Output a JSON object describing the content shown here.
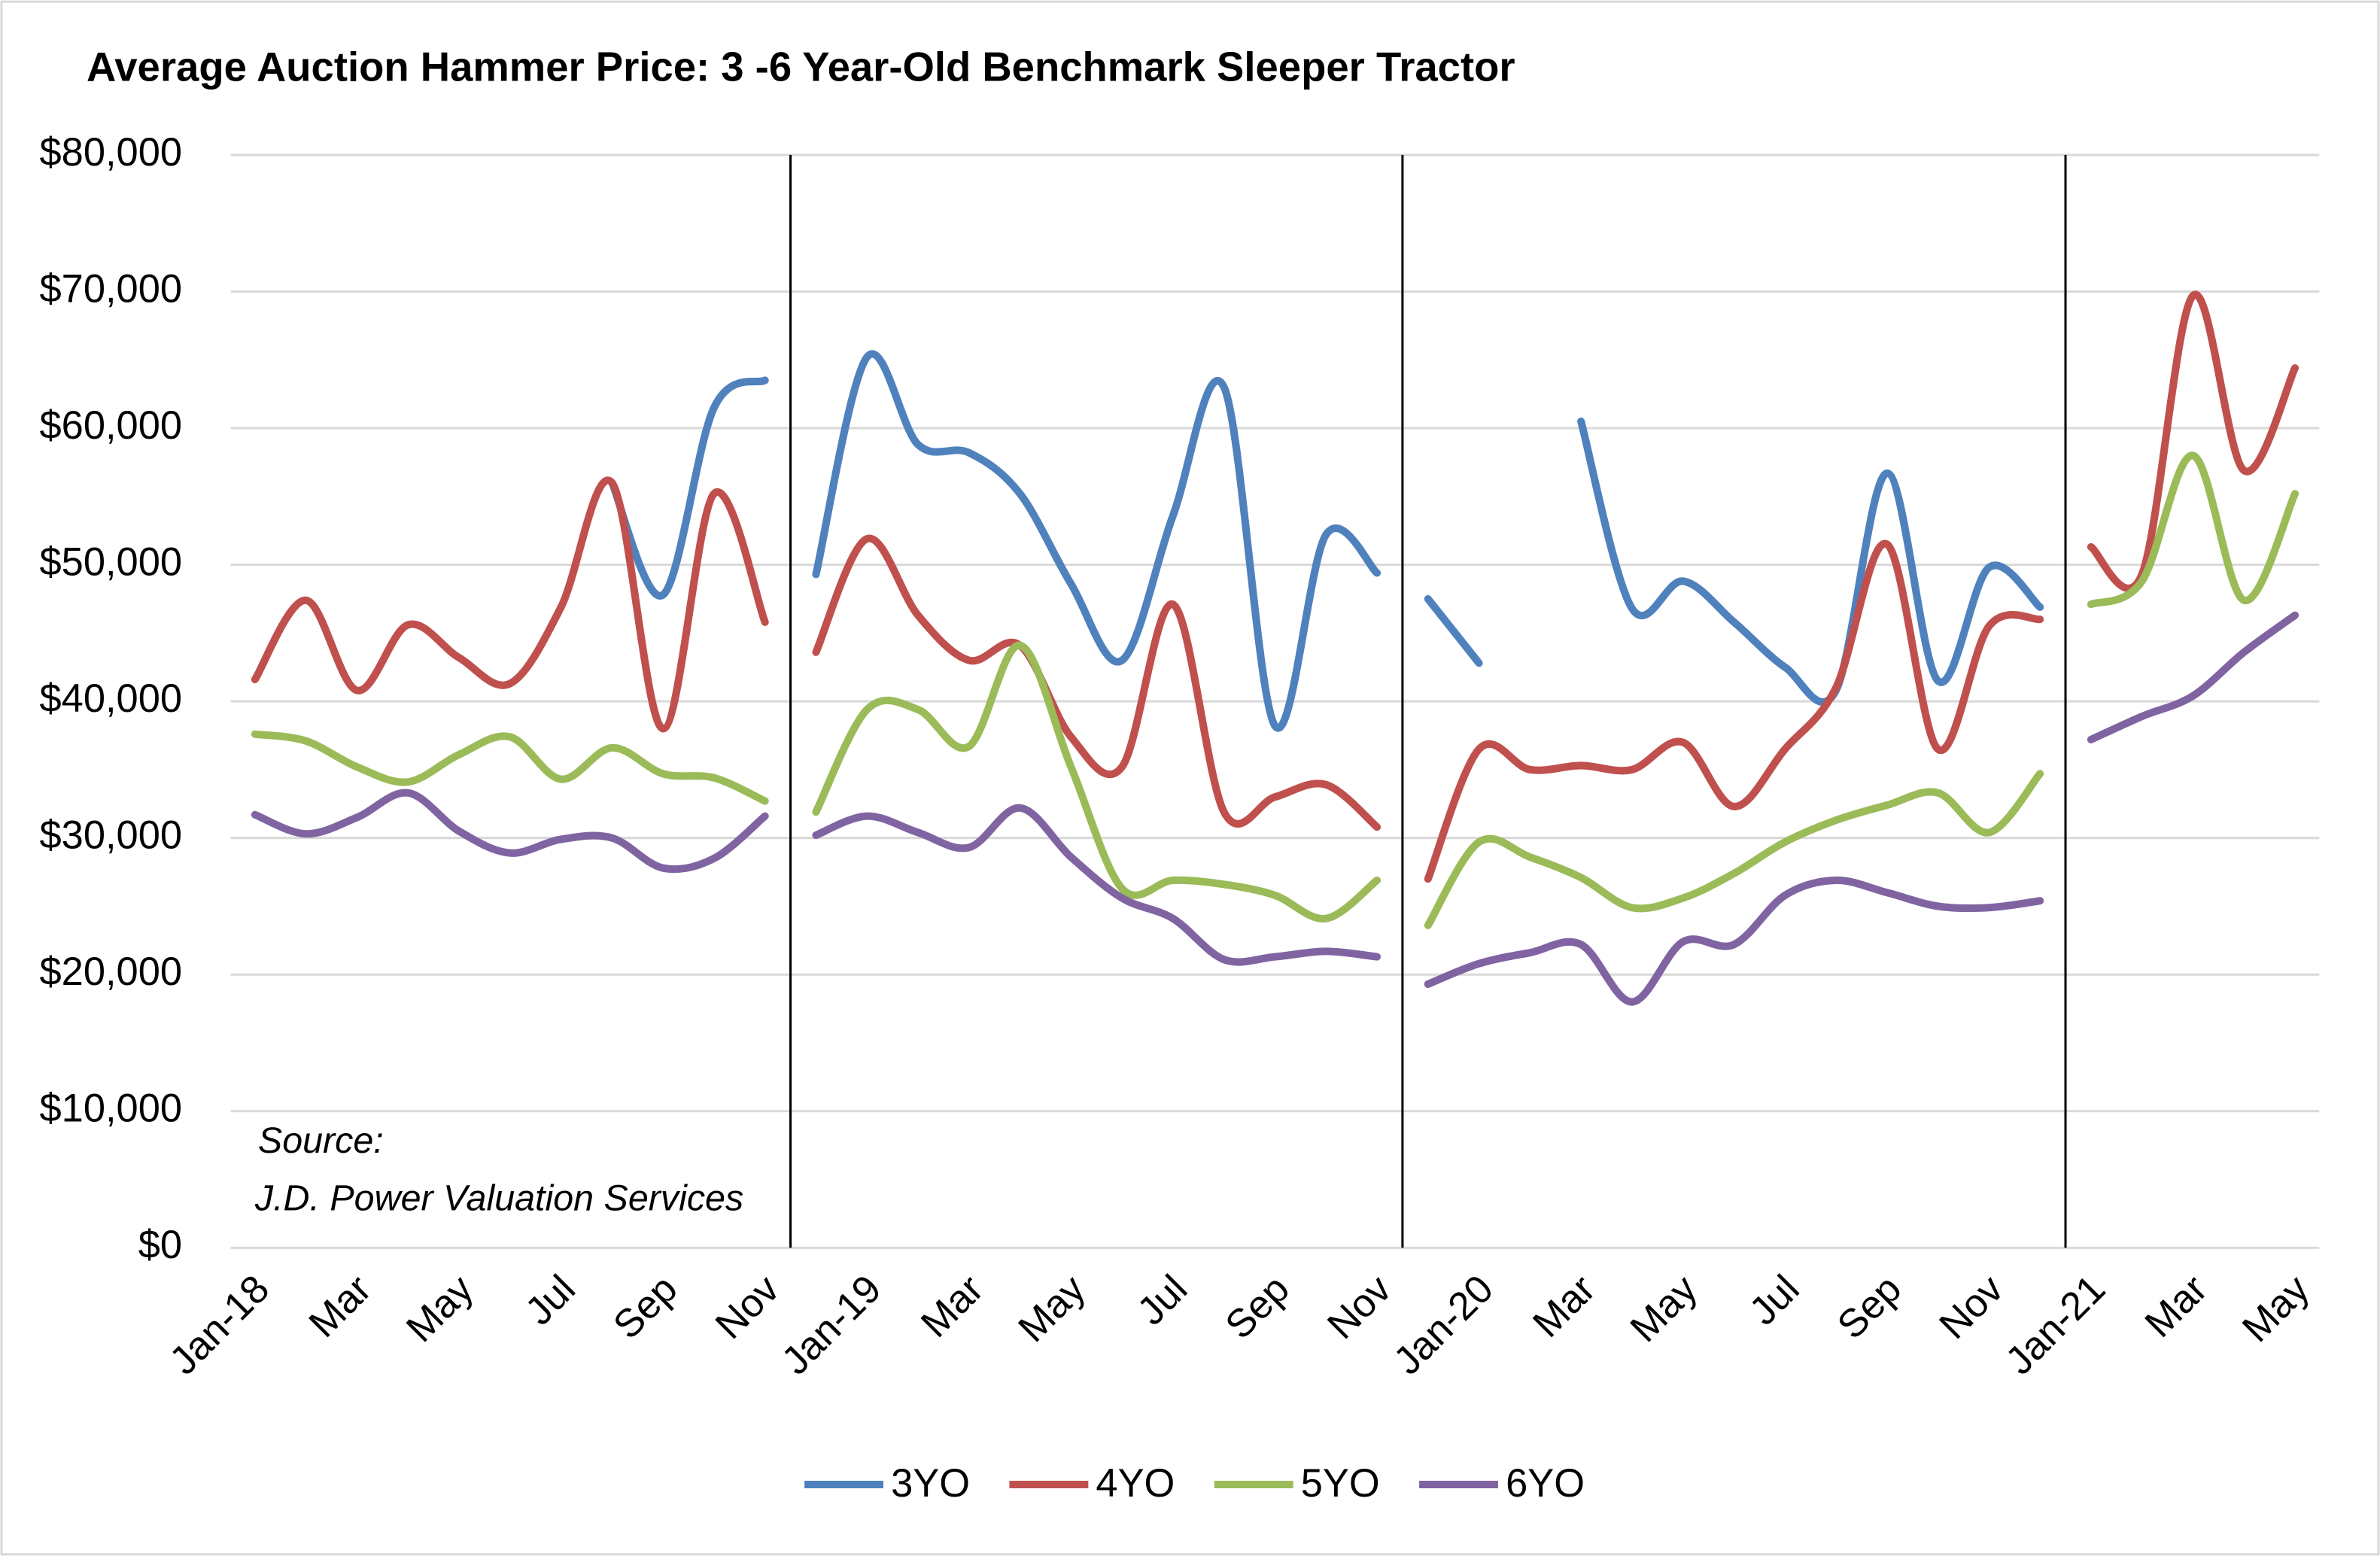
{
  "chart_data": {
    "type": "line",
    "smooth": true,
    "title": "Average Auction Hammer Price: 3 -6 Year-Old Benchmark Sleeper Tractor",
    "annotations": [
      "Source:",
      "J.D. Power Valuation Services"
    ],
    "categories": [
      "Jan-18",
      null,
      "Mar",
      null,
      "May",
      null,
      "Jul",
      null,
      "Sep",
      null,
      "Nov",
      null,
      "Jan-19",
      null,
      "Mar",
      null,
      "May",
      null,
      "Jul",
      null,
      "Sep",
      null,
      "Nov",
      null,
      "Jan-20",
      null,
      "Mar",
      null,
      "May",
      null,
      "Jul",
      null,
      "Sep",
      null,
      "Nov",
      null,
      "Jan-21",
      null,
      "Mar",
      null,
      "May"
    ],
    "series": [
      {
        "name": "3YO",
        "color": "#4f81bd",
        "values": [
          null,
          null,
          null,
          null,
          null,
          null,
          null,
          56000,
          47800,
          61500,
          63500,
          49300,
          65200,
          58800,
          58200,
          55200,
          48600,
          43000,
          53600,
          63000,
          38200,
          52200,
          49400,
          47500,
          42800,
          null,
          60500,
          46800,
          48800,
          45800,
          42500,
          40800,
          56700,
          41500,
          49800,
          46900,
          null,
          null,
          null,
          null,
          null
        ]
      },
      {
        "name": "4YO",
        "color": "#c0504d",
        "values": [
          41600,
          47400,
          40800,
          45600,
          43200,
          41300,
          46900,
          56000,
          38000,
          55200,
          45800,
          43600,
          51900,
          46300,
          43000,
          44100,
          37400,
          35200,
          47100,
          31900,
          33000,
          33900,
          30800,
          27000,
          36500,
          35000,
          35300,
          35000,
          37000,
          32300,
          36500,
          41000,
          51500,
          36500,
          45500,
          46000,
          51300,
          49300,
          69700,
          56900,
          64400
        ]
      },
      {
        "name": "5YO",
        "color": "#9bbb59",
        "values": [
          37600,
          37100,
          35200,
          34100,
          36100,
          37400,
          34300,
          36600,
          34700,
          34400,
          32700,
          31900,
          39400,
          39400,
          36700,
          44100,
          35200,
          26300,
          26900,
          26600,
          25800,
          24100,
          26900,
          23600,
          29700,
          28600,
          27100,
          24900,
          25600,
          27400,
          29700,
          31300,
          32400,
          33300,
          30400,
          34700,
          47100,
          48800,
          58000,
          47400,
          55200
        ]
      },
      {
        "name": "6YO",
        "color": "#8064a2",
        "values": [
          31700,
          30300,
          31500,
          33300,
          30500,
          28900,
          29900,
          30000,
          27800,
          28500,
          31600,
          30200,
          31600,
          30400,
          29300,
          32200,
          28600,
          25600,
          24100,
          21100,
          21300,
          21700,
          21300,
          19300,
          20800,
          21600,
          22200,
          18000,
          22400,
          22200,
          25800,
          26900,
          26000,
          25000,
          24900,
          25400,
          37200,
          38900,
          40400,
          43600,
          46300
        ]
      }
    ],
    "ylim": [
      0,
      80000
    ],
    "yticks": [
      {
        "value": 0,
        "label": "$0"
      },
      {
        "value": 10000,
        "label": "$10,000"
      },
      {
        "value": 20000,
        "label": "$20,000"
      },
      {
        "value": 30000,
        "label": "$30,000"
      },
      {
        "value": 40000,
        "label": "$40,000"
      },
      {
        "value": 50000,
        "label": "$50,000"
      },
      {
        "value": 60000,
        "label": "$60,000"
      },
      {
        "value": 70000,
        "label": "$70,000"
      },
      {
        "value": 80000,
        "label": "$80,000"
      }
    ],
    "grid": true,
    "legend": "bottom"
  }
}
